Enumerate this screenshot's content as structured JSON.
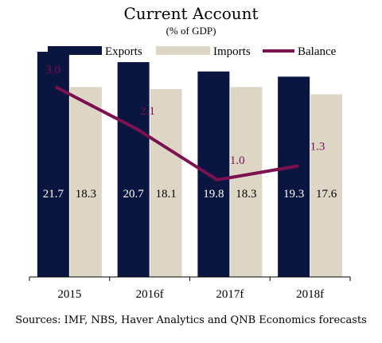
{
  "colors": {
    "exports": "#0b1640",
    "imports": "#ddd6c5",
    "balance": "#7b1150",
    "axis": "#000000"
  },
  "source": "Sources: IMF, NBS,  Haver Analytics and QNB Economics forecasts",
  "chart_data": {
    "type": "bar",
    "title": "Current Account",
    "subtitle": "(% of GDP)",
    "categories": [
      "2015",
      "2016f",
      "2017f",
      "2018f"
    ],
    "ylim": [
      0,
      25
    ],
    "grid": false,
    "legend_position": "top",
    "series": [
      {
        "name": "Exports",
        "type": "bar",
        "values": [
          21.7,
          20.7,
          19.8,
          19.3
        ],
        "labels": [
          "21.7",
          "20.7",
          "19.8",
          "19.3"
        ]
      },
      {
        "name": "Imports",
        "type": "bar",
        "values": [
          18.3,
          18.1,
          18.3,
          17.6
        ],
        "labels": [
          "18.3",
          "18.1",
          "18.3",
          "17.6"
        ]
      },
      {
        "name": "Balance",
        "type": "line",
        "values": [
          3.0,
          2.1,
          1.0,
          1.3
        ],
        "labels": [
          "3.0",
          "2.1",
          "1.0",
          "1.3"
        ]
      }
    ]
  }
}
